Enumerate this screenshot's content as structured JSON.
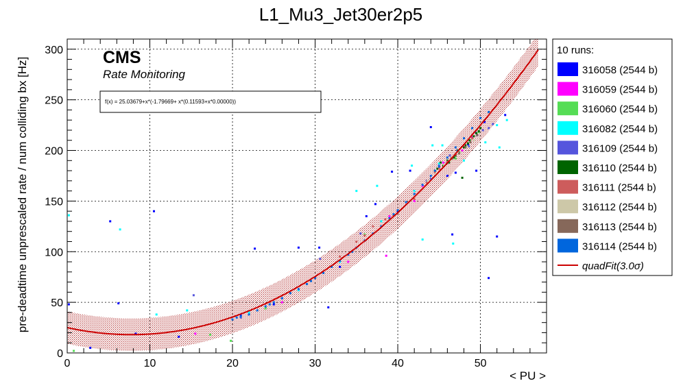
{
  "chart_data": {
    "type": "scatter",
    "title": "L1_Mu3_Jet30er2p5",
    "xlabel": "< PU >",
    "ylabel": "pre-deadtime unprescaled rate / num colliding bx [Hz]",
    "xlim": [
      0,
      58
    ],
    "ylim": [
      0,
      310
    ],
    "x_ticks": [
      0,
      10,
      20,
      30,
      40,
      50
    ],
    "y_ticks": [
      0,
      50,
      100,
      150,
      200,
      250,
      300
    ],
    "x_tick_labels": [
      "0",
      "10",
      "20",
      "30",
      "40",
      "50"
    ],
    "y_tick_labels": [
      "0",
      "50",
      "100",
      "150",
      "200",
      "250",
      "300"
    ],
    "grid": true,
    "legend_position": "outside-right",
    "cms_label": "CMS",
    "cms_sublabel": "Rate Monitoring",
    "fit_formula": "f(x) = 25.03679+x*(-1.79669+ x*(0.11593+x*0.00000))",
    "fit": {
      "name": "quadFit(3.0σ)",
      "coefficients": [
        25.03679,
        -1.79669,
        0.11593,
        0.0
      ],
      "x_range": [
        0,
        57
      ],
      "band_halfwidth": 16,
      "color": "#cc0000"
    },
    "legend_header": "10 runs:",
    "series": [
      {
        "name": "316058 (2544 b)",
        "color": "#0000ff",
        "points": [
          [
            0.2,
            48
          ],
          [
            5.2,
            130
          ],
          [
            6.2,
            49
          ],
          [
            10.5,
            140
          ],
          [
            13.5,
            16
          ],
          [
            22.7,
            103
          ],
          [
            28,
            104
          ],
          [
            30.5,
            104
          ],
          [
            31.6,
            45
          ],
          [
            36.2,
            135
          ],
          [
            37.3,
            147
          ],
          [
            39.3,
            179
          ],
          [
            41.5,
            180
          ],
          [
            44,
            223
          ],
          [
            46.6,
            117
          ],
          [
            47,
            178
          ],
          [
            49.5,
            180
          ],
          [
            51,
            74
          ],
          [
            52,
            115
          ],
          [
            53,
            235
          ],
          [
            2.8,
            5
          ],
          [
            8.3,
            19
          ],
          [
            21,
            37
          ],
          [
            25,
            48
          ],
          [
            33,
            85
          ],
          [
            40,
            140
          ],
          [
            46,
            175
          ],
          [
            48.5,
            205
          ],
          [
            49.6,
            215
          ],
          [
            50.5,
            228
          ]
        ]
      },
      {
        "name": "316059 (2544 b)",
        "color": "#ff00ff",
        "points": [
          [
            38.6,
            96
          ],
          [
            15.5,
            19
          ],
          [
            26,
            50
          ],
          [
            34,
            90
          ],
          [
            39,
            135
          ],
          [
            43,
            165
          ],
          [
            45.5,
            188
          ],
          [
            47.8,
            200
          ],
          [
            49,
            213
          ],
          [
            42,
            150
          ]
        ]
      },
      {
        "name": "316060 (2544 b)",
        "color": "#55dd55",
        "points": [
          [
            19.8,
            12
          ],
          [
            17.3,
            18
          ],
          [
            0.8,
            2
          ],
          [
            24,
            44
          ],
          [
            36,
            117
          ],
          [
            44,
            172
          ],
          [
            47,
            192
          ],
          [
            49.8,
            218
          ]
        ]
      },
      {
        "name": "316082 (2544 b)",
        "color": "#00ffff",
        "points": [
          [
            0.2,
            136
          ],
          [
            6.4,
            122
          ],
          [
            10.8,
            38
          ],
          [
            14.5,
            42
          ],
          [
            35,
            160
          ],
          [
            37.5,
            165
          ],
          [
            41.7,
            185
          ],
          [
            44.2,
            205
          ],
          [
            45.4,
            205
          ],
          [
            46.7,
            108
          ],
          [
            43,
            112
          ],
          [
            50.6,
            208
          ],
          [
            52.3,
            203
          ],
          [
            53.2,
            230
          ],
          [
            52,
            225
          ],
          [
            48,
            190
          ],
          [
            45,
            187
          ],
          [
            42,
            160
          ],
          [
            38,
            130
          ],
          [
            33,
            90
          ],
          [
            28,
            62
          ],
          [
            22,
            40
          ]
        ]
      },
      {
        "name": "316109 (2544 b)",
        "color": "#5555dd",
        "points": [
          [
            15.3,
            57
          ],
          [
            35.5,
            118
          ],
          [
            43.5,
            170
          ],
          [
            47.2,
            200
          ],
          [
            49.4,
            218
          ],
          [
            51.5,
            226
          ],
          [
            51,
            222
          ],
          [
            44,
            172
          ],
          [
            39,
            133
          ],
          [
            30.6,
            93
          ],
          [
            26,
            54
          ],
          [
            21,
            35
          ],
          [
            48.6,
            204
          ],
          [
            50.3,
            220
          ],
          [
            46.3,
            195
          ],
          [
            45,
            185
          ]
        ]
      },
      {
        "name": "316110 (2544 b)",
        "color": "#006400",
        "points": [
          [
            47.8,
            173
          ],
          [
            44.8,
            182
          ],
          [
            45.5,
            185
          ],
          [
            46,
            190
          ],
          [
            46.5,
            192
          ],
          [
            47,
            195
          ],
          [
            47.5,
            198
          ],
          [
            48,
            203
          ],
          [
            48.5,
            207
          ],
          [
            49,
            212
          ],
          [
            49.5,
            217
          ],
          [
            50,
            222
          ],
          [
            45.2,
            188
          ],
          [
            46.8,
            193
          ],
          [
            48.2,
            205
          ],
          [
            49.2,
            214
          ],
          [
            49.8,
            219
          ],
          [
            47.3,
            200
          ],
          [
            48.7,
            210
          ],
          [
            46.2,
            188
          ],
          [
            44.5,
            180
          ]
        ]
      },
      {
        "name": "316111 (2544 b)",
        "color": "#cd5c5c",
        "points": [
          [
            33,
            95
          ],
          [
            35,
            110
          ],
          [
            37,
            125
          ],
          [
            38.5,
            132
          ],
          [
            40,
            138
          ],
          [
            42,
            152
          ],
          [
            43.5,
            168
          ],
          [
            45,
            182
          ],
          [
            46,
            189
          ],
          [
            47,
            196
          ],
          [
            48,
            205
          ],
          [
            49,
            212
          ],
          [
            36,
            116
          ],
          [
            39.5,
            136
          ],
          [
            44.5,
            178
          ]
        ]
      },
      {
        "name": "316112 (2544 b)",
        "color": "#cdc8a8",
        "points": [
          [
            45.6,
            185
          ],
          [
            46.4,
            190
          ],
          [
            47.6,
            198
          ],
          [
            48.4,
            204
          ],
          [
            49.2,
            210
          ],
          [
            44.6,
            177
          ],
          [
            43.6,
            170
          ]
        ]
      },
      {
        "name": "316113 (2544 b)",
        "color": "#86685a",
        "points": [
          [
            47.4,
            197
          ],
          [
            48.2,
            203
          ],
          [
            48.8,
            208
          ],
          [
            49.6,
            215
          ],
          [
            46.6,
            192
          ],
          [
            45.9,
            187
          ]
        ]
      },
      {
        "name": "316114 (2544 b)",
        "color": "#0066dd",
        "points": [
          [
            20,
            33
          ],
          [
            21,
            36
          ],
          [
            22,
            38
          ],
          [
            23,
            42
          ],
          [
            24,
            46
          ],
          [
            25,
            50
          ],
          [
            26,
            54
          ],
          [
            27,
            59
          ],
          [
            28,
            63
          ],
          [
            29,
            68
          ],
          [
            30,
            74
          ],
          [
            31,
            79
          ],
          [
            32,
            85
          ],
          [
            33,
            91
          ],
          [
            34,
            97
          ],
          [
            35,
            104
          ],
          [
            36,
            111
          ],
          [
            37,
            118
          ],
          [
            38,
            125
          ],
          [
            39,
            133
          ],
          [
            40,
            141
          ],
          [
            41,
            149
          ],
          [
            42,
            157
          ],
          [
            43,
            166
          ],
          [
            44,
            175
          ],
          [
            45,
            184
          ],
          [
            46,
            193
          ],
          [
            47,
            203
          ],
          [
            48,
            212
          ],
          [
            49,
            222
          ],
          [
            50,
            232
          ],
          [
            51,
            238
          ],
          [
            20.5,
            35
          ],
          [
            24.5,
            48
          ],
          [
            29.5,
            71
          ],
          [
            34.5,
            100
          ],
          [
            39.5,
            137
          ],
          [
            44.5,
            180
          ]
        ]
      }
    ]
  }
}
